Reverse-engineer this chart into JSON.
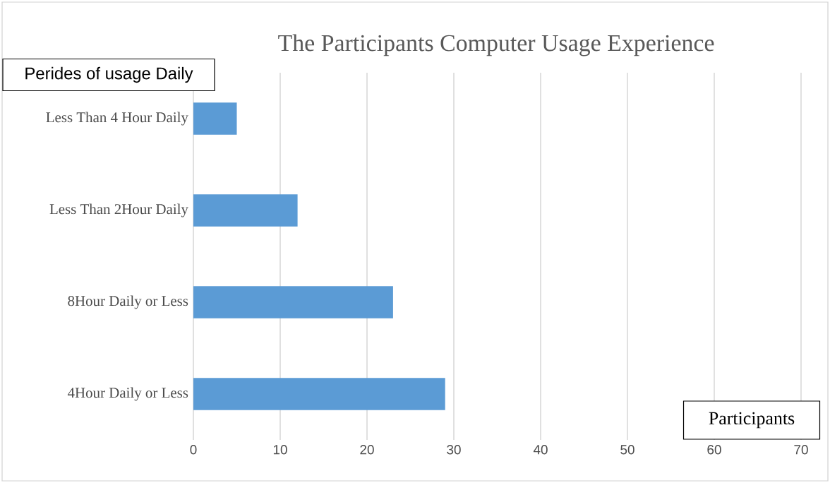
{
  "chart_data": {
    "type": "bar",
    "orientation": "horizontal",
    "title": "The Participants Computer Usage Experience",
    "xlabel": "Participants",
    "ylabel": "Perides of usage Daily",
    "categories": [
      "Less Than 4 Hour Daily",
      "Less Than 2Hour Daily",
      "8Hour Daily or Less",
      "4Hour  Daily or Less"
    ],
    "values": [
      5,
      12,
      23,
      29
    ],
    "color": "#5b9bd5",
    "xlim": [
      0,
      70
    ],
    "xticks": [
      0,
      10,
      20,
      30,
      40,
      50,
      60,
      70
    ],
    "grid": "x"
  }
}
